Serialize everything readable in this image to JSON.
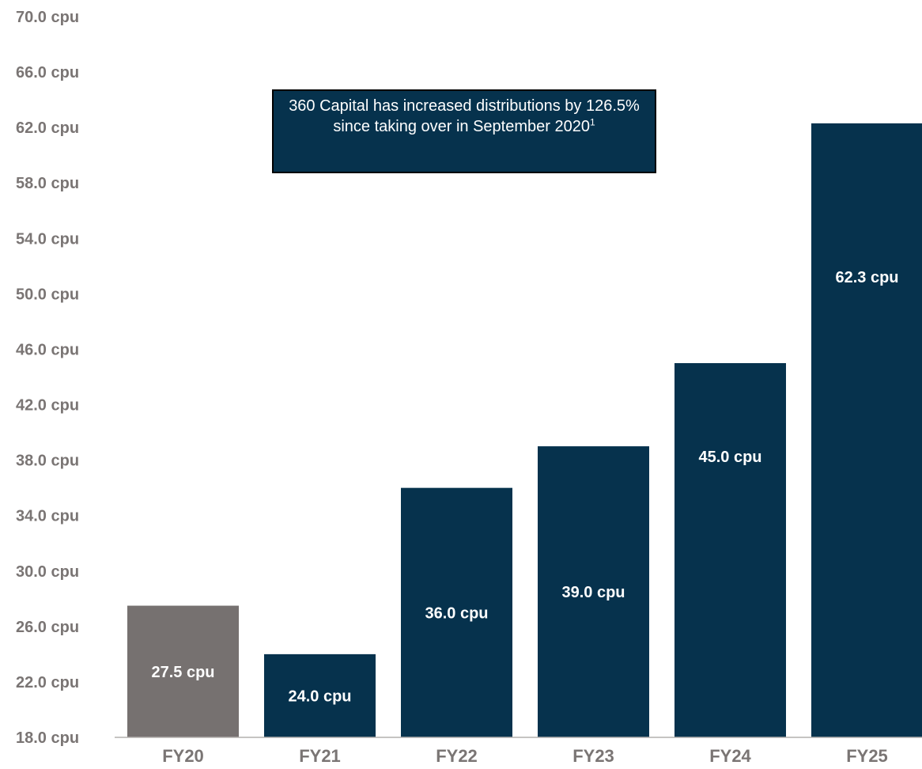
{
  "chart_data": {
    "type": "bar",
    "categories": [
      "FY20",
      "FY21",
      "FY22",
      "FY23",
      "FY24",
      "FY25"
    ],
    "values": [
      27.5,
      24.0,
      36.0,
      39.0,
      45.0,
      62.3
    ],
    "data_labels": [
      "27.5 cpu",
      "24.0 cpu",
      "36.0 cpu",
      "39.0 cpu",
      "45.0 cpu",
      "62.3 cpu"
    ],
    "y_ticks": [
      "18.0 cpu",
      "22.0 cpu",
      "26.0 cpu",
      "30.0 cpu",
      "34.0 cpu",
      "38.0 cpu",
      "42.0 cpu",
      "46.0 cpu",
      "50.0 cpu",
      "54.0 cpu",
      "58.0 cpu",
      "62.0 cpu",
      "66.0 cpu",
      "70.0 cpu"
    ],
    "ylim": [
      18,
      70
    ],
    "title": "",
    "xlabel": "",
    "ylabel": "",
    "grid": false,
    "colors": {
      "FY20": "#767170",
      "default": "#06324d",
      "axis_text": "#7a7574",
      "label_text": "#ffffff"
    }
  },
  "callout": {
    "text": "360 Capital has increased distributions by 126.5% since taking over in September 2020",
    "footnote_marker": "1"
  }
}
